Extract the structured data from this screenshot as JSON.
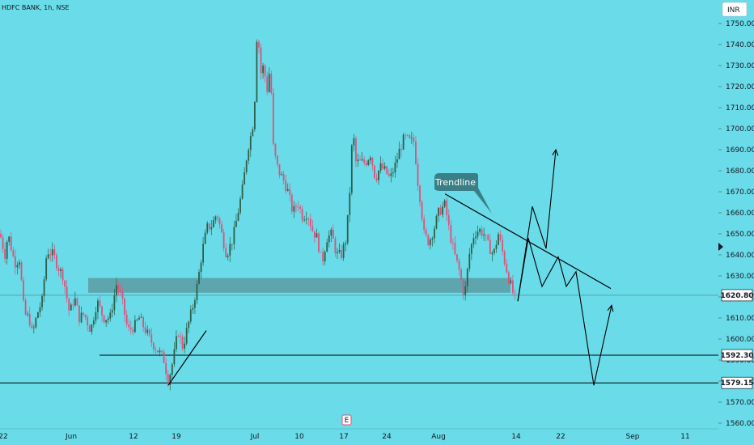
{
  "header": {
    "symbol": "HDFC BANK, 1h, NSE",
    "currency": "INR"
  },
  "colors": {
    "background": "#6adbe8",
    "up": "#2d5f4a",
    "down": "#e0507a",
    "zone": "#5ea6ad",
    "line": "#000000"
  },
  "chart_data": {
    "type": "candlestick",
    "title": "HDFC BANK, 1h, NSE",
    "y_ticks": [
      1560,
      1570,
      1580,
      1590,
      1600,
      1610,
      1620,
      1630,
      1640,
      1650,
      1660,
      1670,
      1680,
      1690,
      1700,
      1710,
      1720,
      1730,
      1740,
      1750
    ],
    "ylim": [
      1557,
      1760
    ],
    "x_ticks": [
      "22",
      "Jun",
      "12",
      "19",
      "Jul",
      "10",
      "17",
      "24",
      "Aug",
      "14",
      "22",
      "Sep",
      "11"
    ],
    "price_labels": [
      {
        "value": 1620.8,
        "text": "1620.80"
      },
      {
        "value": 1592.3,
        "text": "1592.30"
      },
      {
        "value": 1579.15,
        "text": "1579.15"
      }
    ],
    "candle_count": 250,
    "series": [
      {
        "name": "price",
        "points": [
          [
            0,
            1650
          ],
          [
            6,
            1640
          ],
          [
            10,
            1650
          ],
          [
            18,
            1636
          ],
          [
            24,
            1638
          ],
          [
            30,
            1612
          ],
          [
            36,
            1610
          ],
          [
            40,
            1602
          ],
          [
            46,
            1612
          ],
          [
            52,
            1618
          ],
          [
            58,
            1642
          ],
          [
            66,
            1640
          ],
          [
            72,
            1634
          ],
          [
            78,
            1630
          ],
          [
            86,
            1612
          ],
          [
            92,
            1620
          ],
          [
            98,
            1610
          ],
          [
            104,
            1612
          ],
          [
            112,
            1604
          ],
          [
            120,
            1618
          ],
          [
            128,
            1610
          ],
          [
            136,
            1610
          ],
          [
            144,
            1626
          ],
          [
            150,
            1620
          ],
          [
            158,
            1604
          ],
          [
            166,
            1606
          ],
          [
            172,
            1610
          ],
          [
            180,
            1604
          ],
          [
            188,
            1598
          ],
          [
            196,
            1594
          ],
          [
            202,
            1591
          ],
          [
            208,
            1580
          ],
          [
            214,
            1590
          ],
          [
            220,
            1604
          ],
          [
            226,
            1596
          ],
          [
            232,
            1606
          ],
          [
            238,
            1615
          ],
          [
            244,
            1626
          ],
          [
            250,
            1642
          ],
          [
            256,
            1653
          ],
          [
            262,
            1654
          ],
          [
            268,
            1660
          ],
          [
            274,
            1650
          ],
          [
            280,
            1640
          ],
          [
            288,
            1648
          ],
          [
            294,
            1660
          ],
          [
            300,
            1672
          ],
          [
            306,
            1690
          ],
          [
            312,
            1700
          ],
          [
            316,
            1720
          ],
          [
            318,
            1752
          ],
          [
            322,
            1726
          ],
          [
            326,
            1730
          ],
          [
            330,
            1718
          ],
          [
            334,
            1730
          ],
          [
            338,
            1690
          ],
          [
            344,
            1680
          ],
          [
            350,
            1676
          ],
          [
            356,
            1670
          ],
          [
            362,
            1660
          ],
          [
            368,
            1665
          ],
          [
            374,
            1658
          ],
          [
            380,
            1660
          ],
          [
            386,
            1652
          ],
          [
            392,
            1648
          ],
          [
            398,
            1636
          ],
          [
            404,
            1648
          ],
          [
            410,
            1650
          ],
          [
            416,
            1640
          ],
          [
            422,
            1640
          ],
          [
            428,
            1648
          ],
          [
            432,
            1668
          ],
          [
            436,
            1700
          ],
          [
            440,
            1684
          ],
          [
            446,
            1684
          ],
          [
            452,
            1684
          ],
          [
            458,
            1688
          ],
          [
            464,
            1676
          ],
          [
            470,
            1682
          ],
          [
            476,
            1680
          ],
          [
            482,
            1676
          ],
          [
            488,
            1682
          ],
          [
            494,
            1690
          ],
          [
            500,
            1696
          ],
          [
            506,
            1694
          ],
          [
            512,
            1694
          ],
          [
            516,
            1676
          ],
          [
            520,
            1665
          ],
          [
            524,
            1650
          ],
          [
            530,
            1646
          ],
          [
            536,
            1652
          ],
          [
            542,
            1660
          ],
          [
            550,
            1664
          ],
          [
            556,
            1650
          ],
          [
            562,
            1640
          ],
          [
            568,
            1632
          ],
          [
            574,
            1620
          ],
          [
            580,
            1640
          ],
          [
            586,
            1650
          ],
          [
            592,
            1652
          ],
          [
            598,
            1650
          ],
          [
            604,
            1644
          ],
          [
            610,
            1640
          ],
          [
            616,
            1650
          ],
          [
            622,
            1640
          ],
          [
            628,
            1630
          ],
          [
            634,
            1622
          ],
          [
            638,
            1618
          ]
        ]
      }
    ],
    "support_resistance_zone": {
      "from": 1622,
      "to": 1629,
      "start_candle": 109
    },
    "horizontal_lines": [
      {
        "value": 1592.3,
        "start_candle": 123
      },
      {
        "value": 1579.15,
        "start_candle": 0
      }
    ],
    "annotations": [
      {
        "type": "trendline",
        "label": "Trendline",
        "from": [
          550,
          1669
        ],
        "to": [
          755,
          1624
        ]
      },
      {
        "type": "trendline",
        "label": "",
        "from": [
          208,
          1578
        ],
        "to": [
          255,
          1604
        ]
      },
      {
        "type": "projection",
        "label": "",
        "points": [
          [
            640,
            1618
          ],
          [
            658,
            1663
          ],
          [
            675,
            1643
          ],
          [
            687,
            1690
          ]
        ]
      },
      {
        "type": "projection",
        "label": "",
        "points": [
          [
            640,
            1618
          ],
          [
            653,
            1648
          ],
          [
            670,
            1625
          ],
          [
            690,
            1639
          ],
          [
            700,
            1625
          ],
          [
            712,
            1632
          ],
          [
            734,
            1578
          ],
          [
            756,
            1616
          ]
        ]
      }
    ]
  }
}
